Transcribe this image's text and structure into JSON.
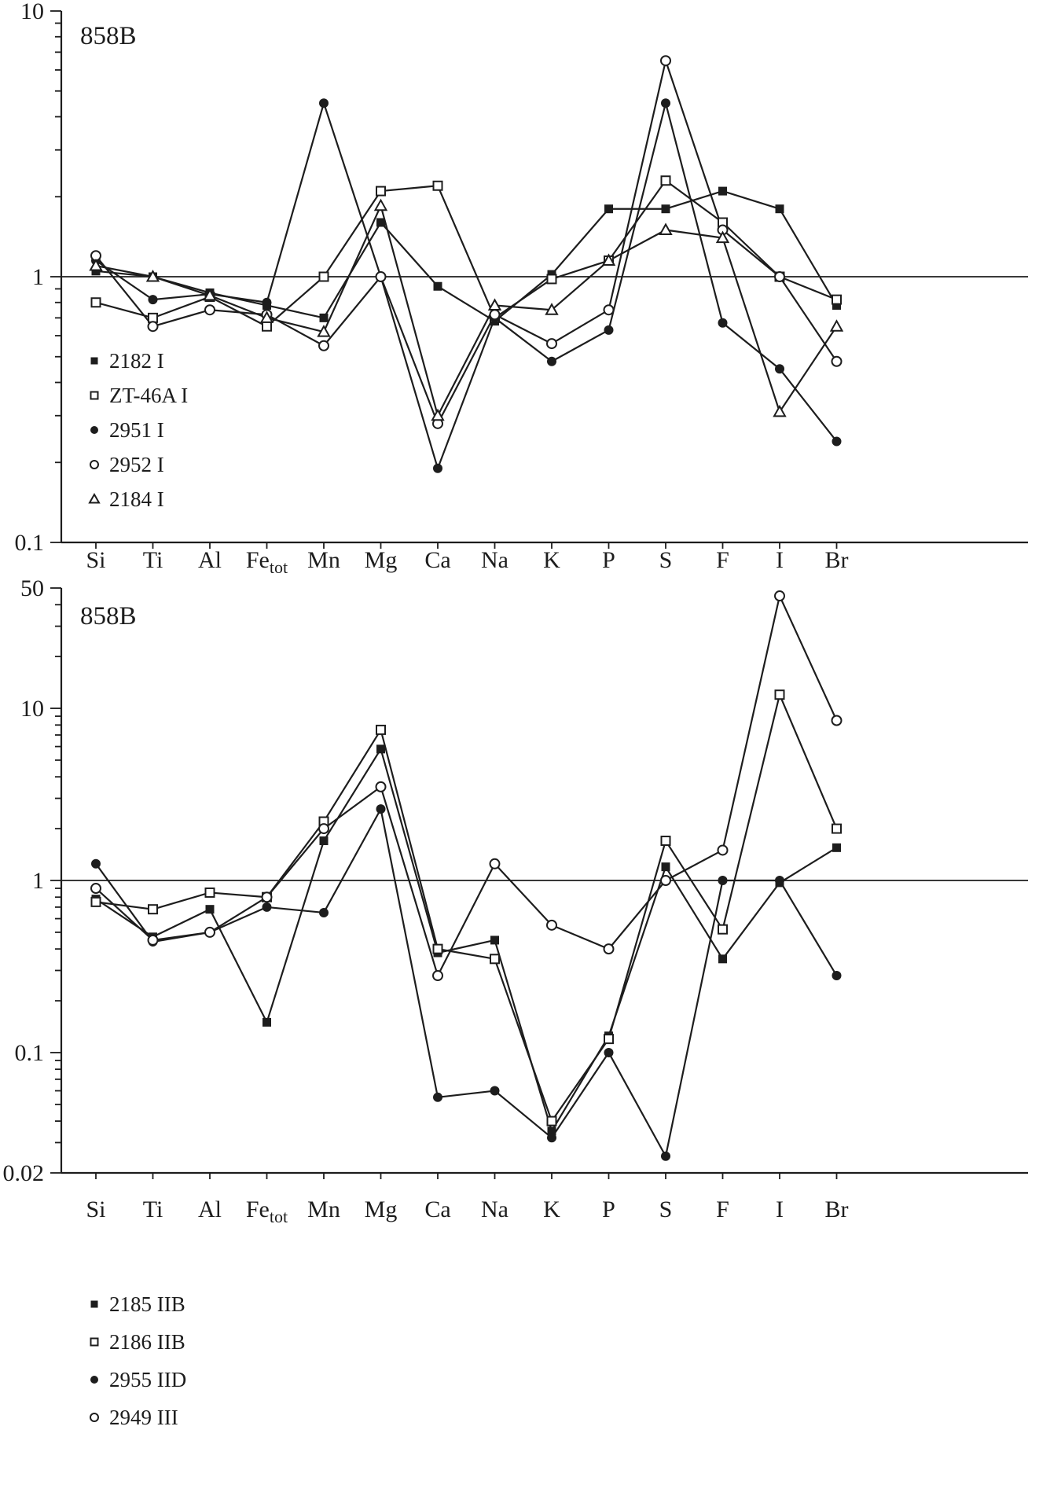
{
  "colors": {
    "ink": "#1d1d1d",
    "background": "#ffffff"
  },
  "figure": {
    "label": "858B"
  },
  "chart_data": [
    {
      "type": "line",
      "panel_id": "top-panel",
      "title": "858B",
      "y_scale": "log",
      "ylim": [
        0.1,
        10
      ],
      "yticks": [
        {
          "value": 10,
          "label": "10"
        },
        {
          "value": 1,
          "label": "1"
        },
        {
          "value": 0.1,
          "label": "0.1"
        }
      ],
      "reference_line_y": 1,
      "grid": "off",
      "legend_position": "left-lower-inside",
      "categories": [
        "Si",
        "Ti",
        "Al",
        "Fe_tot",
        "Mn",
        "Mg",
        "Ca",
        "Na",
        "K",
        "P",
        "S",
        "F",
        "I",
        "Br"
      ],
      "series": [
        {
          "name": "2182 I",
          "marker": "filled-square",
          "values": [
            1.05,
            1.0,
            0.87,
            0.78,
            0.7,
            1.6,
            0.92,
            0.68,
            1.02,
            1.8,
            1.8,
            2.1,
            1.8,
            0.78
          ]
        },
        {
          "name": "ZT-46A I",
          "marker": "open-square",
          "values": [
            0.8,
            0.7,
            0.84,
            0.65,
            1.0,
            2.1,
            2.2,
            0.7,
            0.98,
            1.15,
            2.3,
            1.6,
            1.0,
            0.82
          ]
        },
        {
          "name": "2951 I",
          "marker": "filled-circle",
          "values": [
            1.15,
            0.82,
            0.86,
            0.8,
            4.5,
            1.0,
            0.19,
            0.7,
            0.48,
            0.63,
            4.5,
            0.67,
            0.45,
            0.24
          ]
        },
        {
          "name": "2952 I",
          "marker": "open-circle",
          "values": [
            1.2,
            0.65,
            0.75,
            0.72,
            0.55,
            1.0,
            0.28,
            0.72,
            0.56,
            0.75,
            6.5,
            1.5,
            1.0,
            0.48
          ]
        },
        {
          "name": "2184 I",
          "marker": "open-triangle",
          "values": [
            1.1,
            1.0,
            0.85,
            0.7,
            0.62,
            1.85,
            0.3,
            0.78,
            0.75,
            1.15,
            1.5,
            1.4,
            0.31,
            0.65
          ]
        }
      ]
    },
    {
      "type": "line",
      "panel_id": "bottom-panel",
      "title": "858B",
      "y_scale": "log",
      "ylim": [
        0.02,
        50
      ],
      "yticks": [
        {
          "value": 50,
          "label": "50"
        },
        {
          "value": 10,
          "label": "10"
        },
        {
          "value": 1,
          "label": "1"
        },
        {
          "value": 0.1,
          "label": "0.1"
        },
        {
          "value": 0.02,
          "label": "0.02"
        }
      ],
      "reference_line_y": 1,
      "grid": "off",
      "legend_position": "left-lower-inside",
      "categories": [
        "Si",
        "Ti",
        "Al",
        "Fe_tot",
        "Mn",
        "Mg",
        "Ca",
        "Na",
        "K",
        "P",
        "S",
        "F",
        "I",
        "Br"
      ],
      "series": [
        {
          "name": "2185 IIB",
          "marker": "filled-square",
          "values": [
            0.78,
            0.47,
            0.68,
            0.15,
            1.7,
            5.8,
            0.38,
            0.45,
            0.035,
            0.125,
            1.2,
            0.35,
            0.97,
            1.55
          ]
        },
        {
          "name": "2186 IIB",
          "marker": "open-square",
          "values": [
            0.75,
            0.68,
            0.85,
            0.8,
            2.2,
            7.5,
            0.4,
            0.35,
            0.04,
            0.12,
            1.7,
            0.52,
            12,
            2.0
          ]
        },
        {
          "name": "2955 IID",
          "marker": "filled-circle",
          "values": [
            1.25,
            0.44,
            0.5,
            0.7,
            0.65,
            2.6,
            0.055,
            0.06,
            0.032,
            0.1,
            0.025,
            1.0,
            1.0,
            0.28
          ]
        },
        {
          "name": "2949 III",
          "marker": "open-circle",
          "values": [
            0.9,
            0.45,
            0.5,
            0.8,
            2.0,
            3.5,
            0.28,
            1.25,
            0.55,
            0.4,
            1.0,
            1.5,
            45,
            8.5
          ]
        }
      ]
    }
  ]
}
